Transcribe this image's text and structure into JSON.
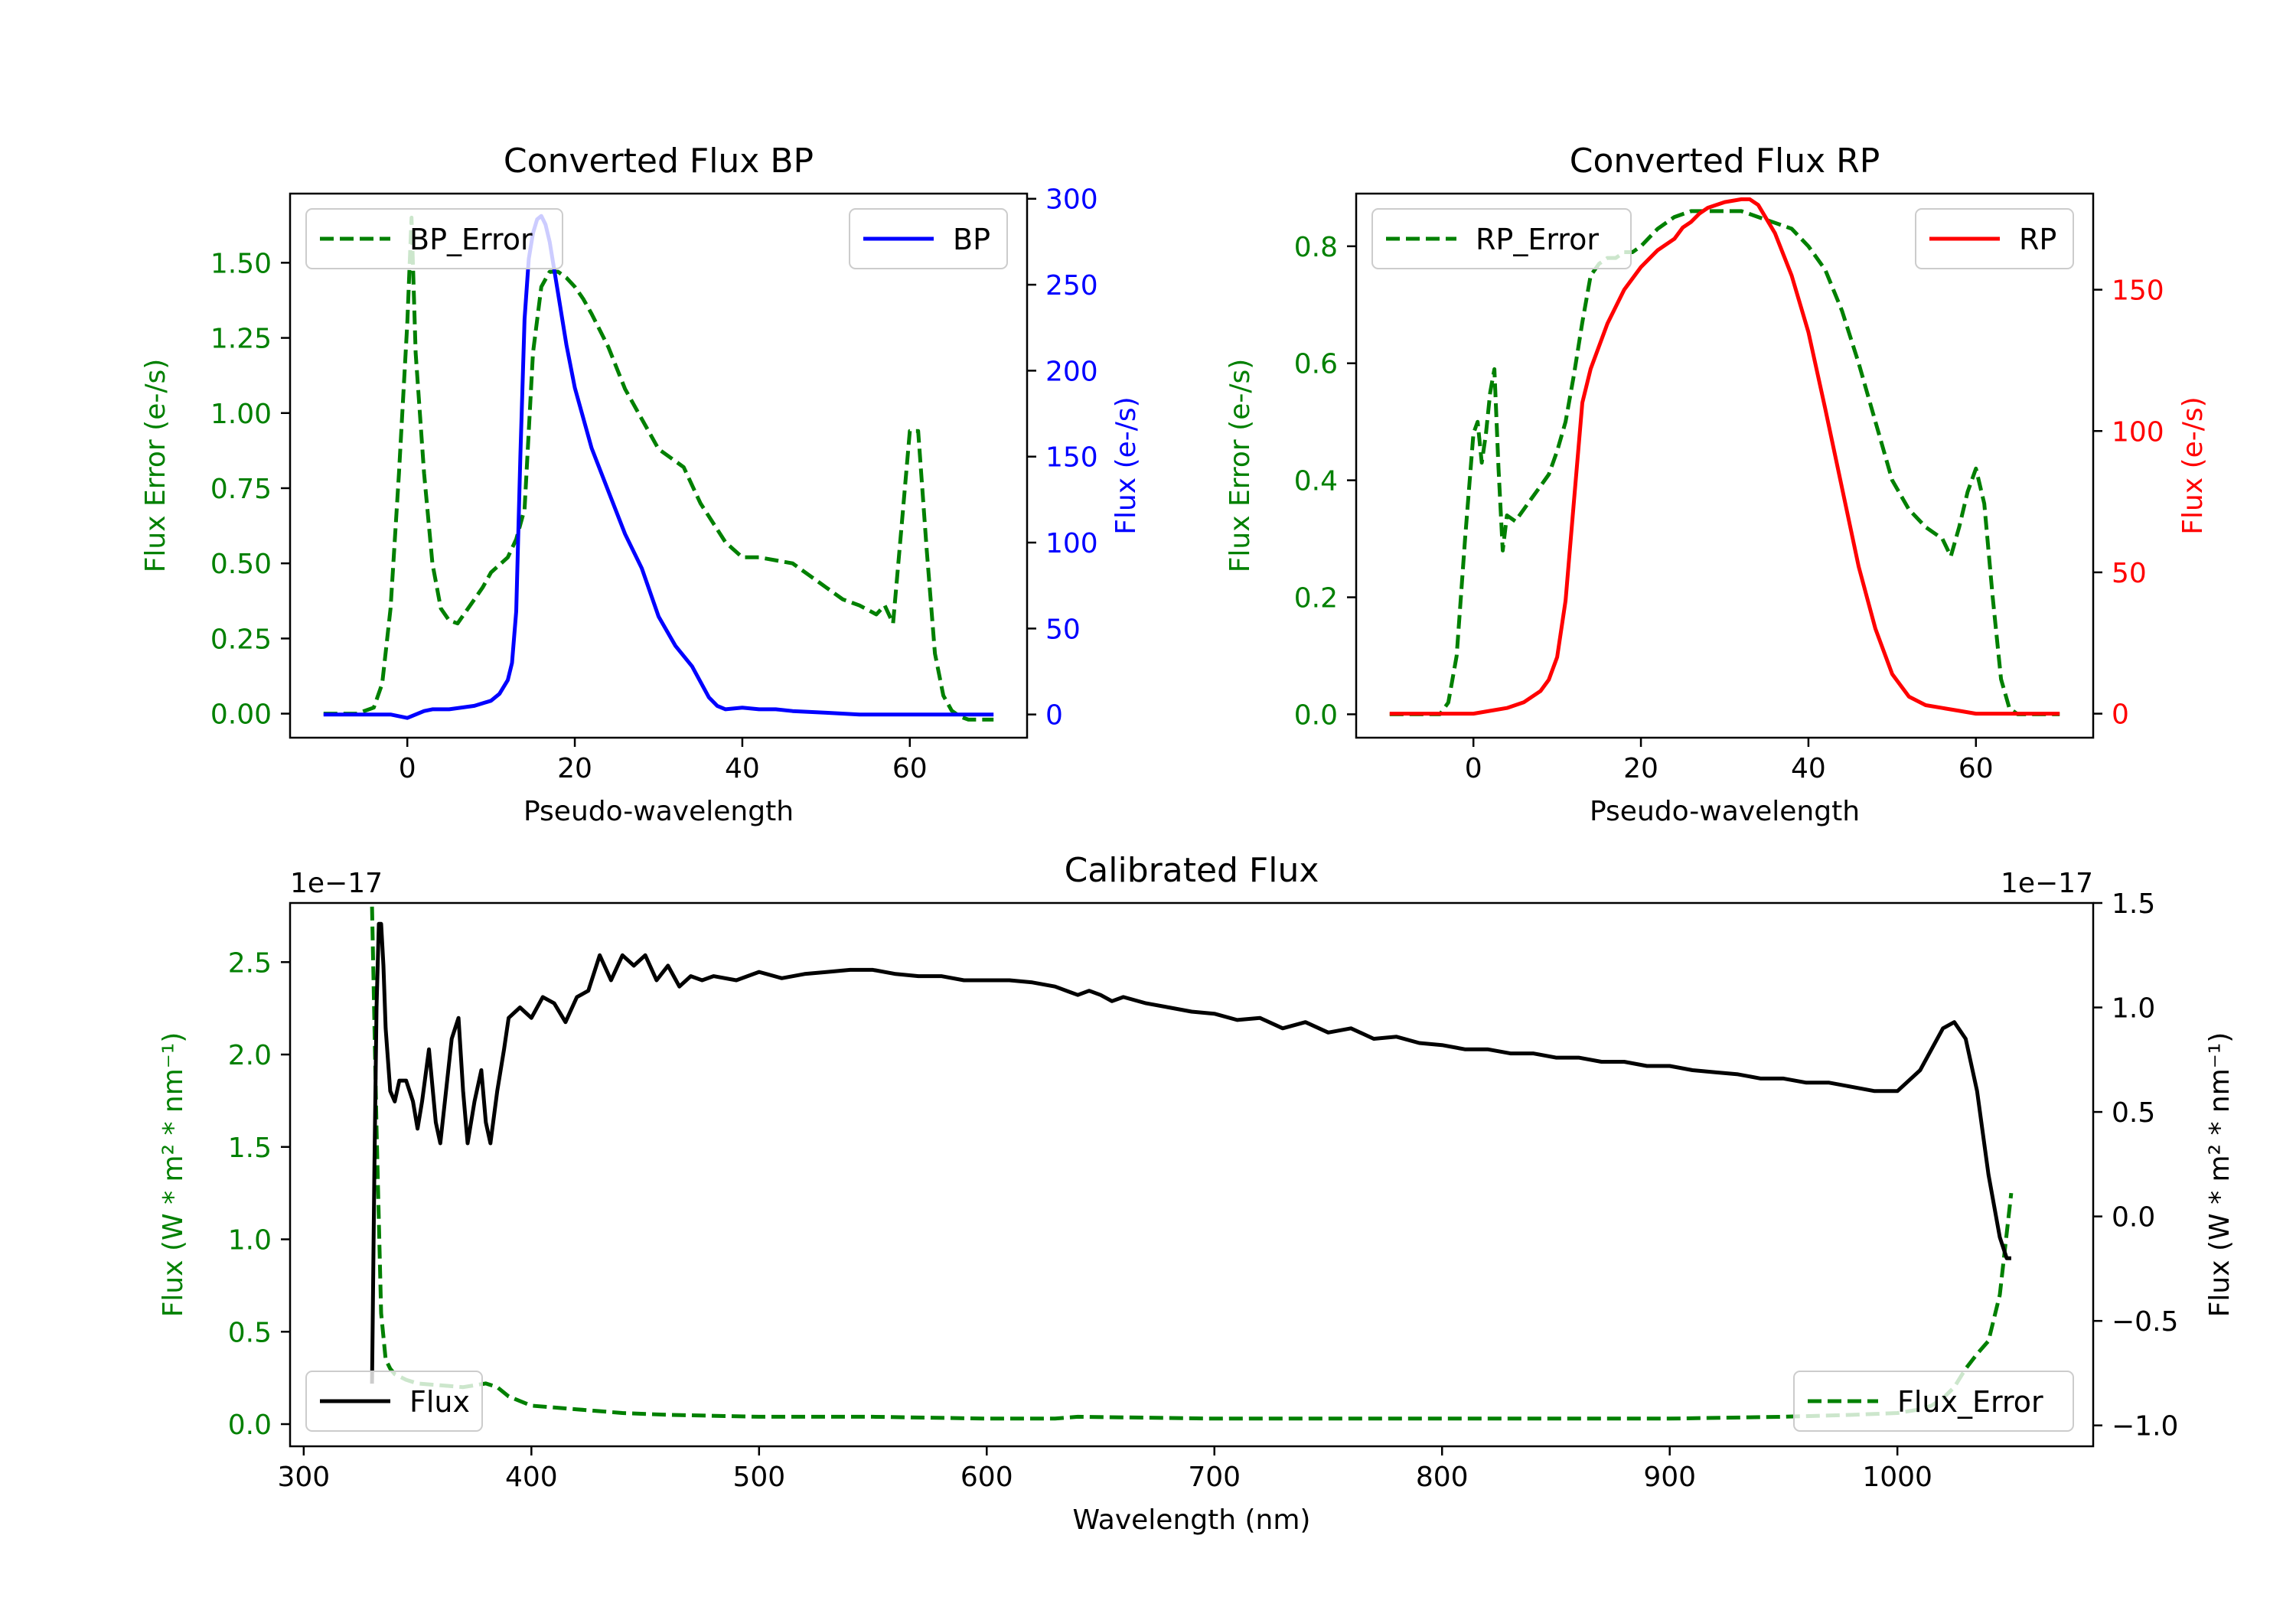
{
  "chart_data": [
    {
      "type": "line",
      "title": "Converted Flux BP",
      "xlabel": "Pseudo-wavelength",
      "ylabel_left": "Flux Error (e-/s)",
      "ylabel_right": "Flux (e-/s)",
      "xlim": [
        -14,
        74
      ],
      "ylim_left": [
        -0.08,
        1.73
      ],
      "ylim_right": [
        -13.5,
        303
      ],
      "xticks": [
        0,
        20,
        40,
        60
      ],
      "xtick_labels": [
        "0",
        "20",
        "40",
        "60"
      ],
      "yticks_left": [
        0,
        0.25,
        0.5,
        0.75,
        1.0,
        1.25,
        1.5
      ],
      "ytick_labels_left": [
        "0.00",
        "0.25",
        "0.50",
        "0.75",
        "1.00",
        "1.25",
        "1.50"
      ],
      "yticks_right": [
        0,
        50,
        100,
        150,
        200,
        250,
        300
      ],
      "ytick_labels_right": [
        "0",
        "50",
        "100",
        "150",
        "200",
        "250",
        "300"
      ],
      "legend_left": {
        "label": "BP_Error",
        "position": "upper left"
      },
      "legend_right": {
        "label": "BP",
        "position": "upper right"
      },
      "colors": {
        "left_axis": "#008000",
        "right_axis": "#0000ff"
      },
      "series": [
        {
          "name": "BP_Error",
          "axis": "left",
          "color": "#008000",
          "style": "dashed",
          "x": [
            -10,
            -6,
            -4,
            -3,
            -2,
            -1,
            0,
            0.5,
            1,
            2,
            3,
            4,
            5,
            6,
            7,
            8,
            9,
            10,
            12,
            13,
            14,
            15,
            16,
            17,
            18,
            19,
            20,
            21,
            22,
            24,
            26,
            28,
            30,
            32,
            33,
            35,
            38,
            40,
            42,
            46,
            48,
            50,
            52,
            54,
            56,
            57,
            58,
            59,
            60,
            61,
            62,
            63,
            64,
            65,
            66,
            67,
            68,
            70
          ],
          "y": [
            0,
            0,
            0.02,
            0.1,
            0.35,
            0.8,
            1.3,
            1.65,
            1.2,
            0.8,
            0.5,
            0.35,
            0.31,
            0.3,
            0.34,
            0.38,
            0.42,
            0.47,
            0.52,
            0.58,
            0.68,
            1.2,
            1.42,
            1.47,
            1.47,
            1.45,
            1.42,
            1.38,
            1.33,
            1.22,
            1.08,
            0.98,
            0.88,
            0.84,
            0.82,
            0.7,
            0.57,
            0.52,
            0.52,
            0.5,
            0.46,
            0.42,
            0.38,
            0.36,
            0.33,
            0.36,
            0.3,
            0.62,
            0.94,
            0.94,
            0.55,
            0.2,
            0.06,
            0.01,
            -0.01,
            -0.02,
            -0.02,
            -0.02
          ]
        },
        {
          "name": "BP",
          "axis": "right",
          "color": "#0000ff",
          "style": "solid",
          "x": [
            -10,
            -5,
            -2,
            0,
            2,
            3,
            5,
            8,
            10,
            11,
            12,
            12.5,
            13,
            13.5,
            14,
            14.5,
            15,
            15.5,
            16,
            16.5,
            17,
            18,
            19,
            20,
            22,
            24,
            26,
            28,
            30,
            32,
            34,
            36,
            37,
            38,
            40,
            42,
            44,
            46,
            50,
            54,
            58,
            62,
            66,
            70
          ],
          "y": [
            0,
            0,
            0,
            -2,
            2,
            3,
            3,
            5,
            8,
            12,
            20,
            30,
            60,
            150,
            230,
            265,
            280,
            288,
            290,
            285,
            275,
            245,
            215,
            190,
            155,
            130,
            105,
            85,
            57,
            40,
            28,
            10,
            5,
            3,
            4,
            3,
            3,
            2,
            1,
            0,
            0,
            0,
            0,
            0
          ]
        }
      ]
    },
    {
      "type": "line",
      "title": "Converted Flux RP",
      "xlabel": "Pseudo-wavelength",
      "ylabel_left": "Flux Error (e-/s)",
      "ylabel_right": "Flux (e-/s)",
      "xlim": [
        -14,
        74
      ],
      "ylim_left": [
        -0.04,
        0.89
      ],
      "ylim_right": [
        -8.5,
        184
      ],
      "xticks": [
        0,
        20,
        40,
        60
      ],
      "xtick_labels": [
        "0",
        "20",
        "40",
        "60"
      ],
      "yticks_left": [
        0,
        0.2,
        0.4,
        0.6,
        0.8
      ],
      "ytick_labels_left": [
        "0.0",
        "0.2",
        "0.4",
        "0.6",
        "0.8"
      ],
      "yticks_right": [
        0,
        50,
        100,
        150
      ],
      "ytick_labels_right": [
        "0",
        "50",
        "100",
        "150"
      ],
      "legend_left": {
        "label": "RP_Error",
        "position": "upper left"
      },
      "legend_right": {
        "label": "RP",
        "position": "upper right"
      },
      "colors": {
        "left_axis": "#008000",
        "right_axis": "#ff0000"
      },
      "series": [
        {
          "name": "RP_Error",
          "axis": "left",
          "color": "#008000",
          "style": "dashed",
          "x": [
            -10,
            -4,
            -3,
            -2,
            -1,
            0,
            0.5,
            1,
            1.5,
            2,
            2.5,
            3,
            3.5,
            4,
            5,
            6,
            7,
            8,
            9,
            10,
            11,
            12,
            13,
            14,
            15,
            16,
            17,
            18,
            19,
            20,
            22,
            24,
            26,
            28,
            30,
            32,
            34,
            36,
            38,
            40,
            42,
            44,
            46,
            48,
            50,
            52,
            54,
            56,
            57,
            58,
            59,
            60,
            61,
            62,
            63,
            64,
            65,
            66,
            70
          ],
          "y": [
            0,
            0,
            0.02,
            0.1,
            0.3,
            0.48,
            0.5,
            0.43,
            0.48,
            0.55,
            0.59,
            0.42,
            0.28,
            0.34,
            0.33,
            0.35,
            0.37,
            0.39,
            0.41,
            0.45,
            0.5,
            0.58,
            0.67,
            0.75,
            0.77,
            0.78,
            0.78,
            0.79,
            0.79,
            0.8,
            0.83,
            0.85,
            0.86,
            0.86,
            0.86,
            0.86,
            0.85,
            0.84,
            0.83,
            0.8,
            0.76,
            0.69,
            0.6,
            0.5,
            0.4,
            0.35,
            0.32,
            0.3,
            0.27,
            0.32,
            0.38,
            0.42,
            0.36,
            0.2,
            0.06,
            0.01,
            0,
            0,
            0
          ]
        },
        {
          "name": "RP",
          "axis": "right",
          "color": "#ff0000",
          "style": "solid",
          "x": [
            -10,
            -2,
            0,
            2,
            4,
            6,
            8,
            9,
            10,
            11,
            12,
            13,
            14,
            16,
            18,
            20,
            22,
            24,
            25,
            26,
            27,
            28,
            30,
            32,
            33,
            34,
            35,
            36,
            38,
            40,
            42,
            44,
            46,
            48,
            50,
            52,
            54,
            56,
            58,
            60,
            62,
            64,
            66,
            70
          ],
          "y": [
            0,
            0,
            0,
            1,
            2,
            4,
            8,
            12,
            20,
            40,
            75,
            110,
            122,
            138,
            150,
            158,
            164,
            168,
            172,
            174,
            177,
            179,
            181,
            182,
            182,
            180,
            175,
            170,
            155,
            135,
            108,
            80,
            52,
            30,
            14,
            6,
            3,
            2,
            1,
            0,
            0,
            0,
            0,
            0
          ]
        }
      ]
    },
    {
      "type": "line",
      "title": "Calibrated Flux",
      "xlabel": "Wavelength (nm)",
      "ylabel_left": "Flux (W * m² * nm⁻¹)",
      "ylabel_right": "Flux (W * m² * nm⁻¹)",
      "offset_text_left": "1e−17",
      "offset_text_right": "1e−17",
      "xlim": [
        294,
        1086
      ],
      "ylim_left": [
        -0.12,
        2.82
      ],
      "ylim_right": [
        -1.1,
        1.5
      ],
      "xticks": [
        300,
        400,
        500,
        600,
        700,
        800,
        900,
        1000
      ],
      "xtick_labels": [
        "300",
        "400",
        "500",
        "600",
        "700",
        "800",
        "900",
        "1000"
      ],
      "yticks_left": [
        0,
        0.5,
        1.0,
        1.5,
        2.0,
        2.5
      ],
      "ytick_labels_left": [
        "0.0",
        "0.5",
        "1.0",
        "1.5",
        "2.0",
        "2.5"
      ],
      "yticks_right": [
        -1.0,
        -0.5,
        0.0,
        0.5,
        1.0,
        1.5
      ],
      "ytick_labels_right": [
        "−1.0",
        "−0.5",
        "0.0",
        "0.5",
        "1.0",
        "1.5"
      ],
      "legend_left": {
        "label": "Flux",
        "position": "lower left"
      },
      "legend_right": {
        "label": "Flux_Error",
        "position": "lower right"
      },
      "colors": {
        "left_axis": "#008000",
        "right_axis": "#000000"
      },
      "series": [
        {
          "name": "Flux_Error",
          "axis": "left",
          "color": "#008000",
          "style": "dashed",
          "x": [
            330,
            332,
            334,
            336,
            338,
            340,
            345,
            350,
            360,
            370,
            380,
            385,
            390,
            400,
            420,
            440,
            460,
            500,
            550,
            600,
            630,
            640,
            700,
            750,
            800,
            850,
            900,
            950,
            980,
            1000,
            1010,
            1015,
            1020,
            1025,
            1030,
            1035,
            1040,
            1045,
            1050
          ],
          "y": [
            2.8,
            1.6,
            0.6,
            0.35,
            0.3,
            0.27,
            0.24,
            0.22,
            0.21,
            0.2,
            0.22,
            0.2,
            0.15,
            0.1,
            0.08,
            0.06,
            0.05,
            0.04,
            0.04,
            0.03,
            0.03,
            0.04,
            0.03,
            0.03,
            0.03,
            0.03,
            0.03,
            0.04,
            0.05,
            0.06,
            0.08,
            0.1,
            0.14,
            0.2,
            0.3,
            0.38,
            0.45,
            0.7,
            1.25
          ]
        },
        {
          "name": "Flux",
          "axis": "right",
          "color": "#000000",
          "style": "solid",
          "x": [
            330,
            331,
            332,
            333,
            334,
            335,
            336,
            338,
            340,
            342,
            345,
            348,
            350,
            352,
            355,
            358,
            360,
            362,
            365,
            368,
            370,
            372,
            375,
            378,
            380,
            382,
            385,
            388,
            390,
            395,
            400,
            405,
            410,
            415,
            420,
            425,
            430,
            435,
            440,
            445,
            450,
            455,
            460,
            465,
            470,
            475,
            480,
            490,
            500,
            510,
            520,
            530,
            540,
            550,
            560,
            570,
            580,
            590,
            600,
            610,
            620,
            630,
            640,
            645,
            650,
            655,
            660,
            670,
            680,
            690,
            700,
            710,
            720,
            730,
            740,
            750,
            760,
            770,
            780,
            790,
            800,
            810,
            820,
            830,
            840,
            850,
            860,
            870,
            880,
            890,
            900,
            910,
            920,
            930,
            940,
            950,
            960,
            970,
            980,
            990,
            1000,
            1010,
            1020,
            1025,
            1030,
            1035,
            1040,
            1045,
            1048,
            1050
          ],
          "y": [
            -0.8,
            0.2,
            1.0,
            1.4,
            1.4,
            1.2,
            0.9,
            0.6,
            0.55,
            0.65,
            0.65,
            0.55,
            0.42,
            0.55,
            0.8,
            0.45,
            0.35,
            0.55,
            0.85,
            0.95,
            0.6,
            0.35,
            0.55,
            0.7,
            0.45,
            0.35,
            0.6,
            0.8,
            0.95,
            1.0,
            0.95,
            1.05,
            1.02,
            0.93,
            1.05,
            1.08,
            1.25,
            1.13,
            1.25,
            1.2,
            1.25,
            1.13,
            1.2,
            1.1,
            1.15,
            1.13,
            1.15,
            1.13,
            1.17,
            1.14,
            1.16,
            1.17,
            1.18,
            1.18,
            1.16,
            1.15,
            1.15,
            1.13,
            1.13,
            1.13,
            1.12,
            1.1,
            1.06,
            1.08,
            1.06,
            1.03,
            1.05,
            1.02,
            1.0,
            0.98,
            0.97,
            0.94,
            0.95,
            0.9,
            0.93,
            0.88,
            0.9,
            0.85,
            0.86,
            0.83,
            0.82,
            0.8,
            0.8,
            0.78,
            0.78,
            0.76,
            0.76,
            0.74,
            0.74,
            0.72,
            0.72,
            0.7,
            0.69,
            0.68,
            0.66,
            0.66,
            0.64,
            0.64,
            0.62,
            0.6,
            0.6,
            0.7,
            0.9,
            0.93,
            0.85,
            0.6,
            0.2,
            -0.1,
            -0.2,
            -0.2
          ]
        }
      ]
    }
  ]
}
